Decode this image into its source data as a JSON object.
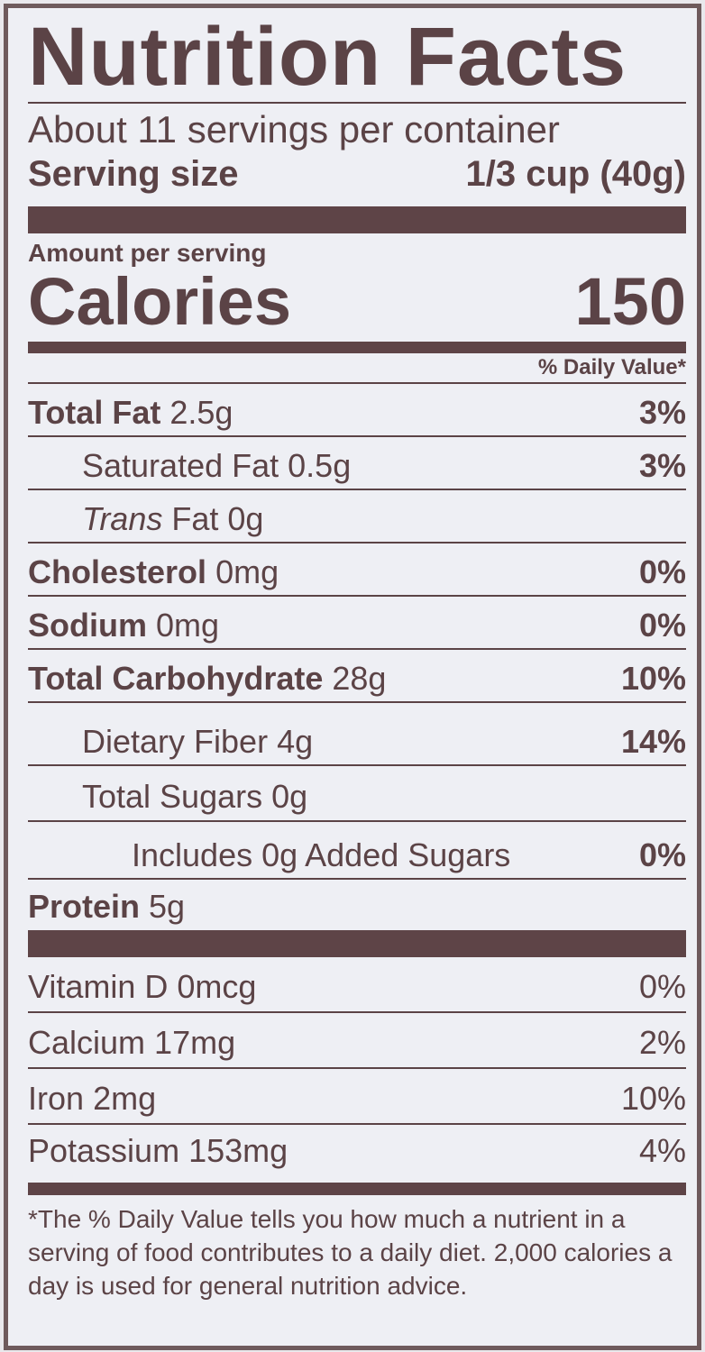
{
  "title": "Nutrition Facts",
  "servings_per_container": "About 11 servings per container",
  "serving_size_label": "Serving size",
  "serving_size_value": "1/3 cup (40g)",
  "amount_per_serving": "Amount per serving",
  "calories_label": "Calories",
  "calories_value": "150",
  "daily_value_header": "% Daily Value*",
  "nutrients": [
    {
      "name": "Total Fat",
      "amount": "2.5g",
      "dv": "3%"
    },
    {
      "name": "Saturated Fat",
      "amount": "0.5g",
      "dv": "3%"
    },
    {
      "name_italic": "Trans",
      "name": " Fat",
      "amount": "0g",
      "dv": ""
    },
    {
      "name": "Cholesterol",
      "amount": "0mg",
      "dv": "0%"
    },
    {
      "name": "Sodium",
      "amount": "0mg",
      "dv": "0%"
    },
    {
      "name": "Total Carbohydrate",
      "amount": "28g",
      "dv": "10%"
    },
    {
      "name": "Dietary Fiber",
      "amount": "4g",
      "dv": "14%"
    },
    {
      "name": "Total Sugars",
      "amount": "0g",
      "dv": ""
    },
    {
      "name": "Includes 0g Added Sugars",
      "amount": "",
      "dv": "0%"
    },
    {
      "name": "Protein",
      "amount": "5g",
      "dv": ""
    }
  ],
  "vitamins": [
    {
      "name": "Vitamin D",
      "amount": "0mcg",
      "dv": "0%"
    },
    {
      "name": "Calcium",
      "amount": "17mg",
      "dv": "2%"
    },
    {
      "name": "Iron",
      "amount": "2mg",
      "dv": "10%"
    },
    {
      "name": "Potassium",
      "amount": "153mg",
      "dv": "4%"
    }
  ],
  "footnote": "*The % Daily Value tells you how much a nutrient in a serving of food contributes to a daily diet. 2,000 calories a day is used for general nutrition advice.",
  "colors": {
    "ink": "#5e4447",
    "background": "#eeeff4"
  }
}
